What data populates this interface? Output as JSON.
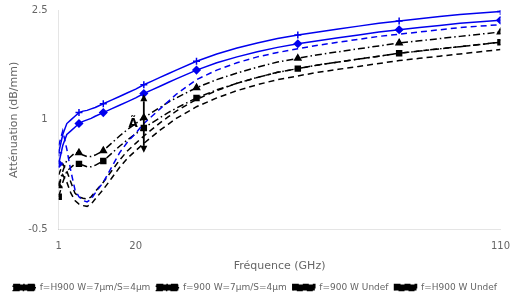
{
  "chart_data": {
    "type": "line",
    "xlabel": "Fréquence (GHz)",
    "ylabel": "Atténuation (dB/mm)",
    "xlim": [
      1,
      110
    ],
    "xticks": [
      1,
      20,
      110
    ],
    "ylim": [
      -0.5,
      2.5
    ],
    "yticks": [
      -0.5,
      1,
      2.5
    ],
    "grid": false,
    "legend": "lower right",
    "x": [
      1,
      2,
      3,
      4,
      5,
      6,
      7,
      8,
      9,
      10,
      12,
      14,
      16,
      18,
      20,
      22,
      24,
      26,
      28,
      30,
      35,
      40,
      45,
      50,
      55,
      60,
      65,
      70,
      75,
      80,
      85,
      90,
      95,
      100,
      105,
      110
    ],
    "series": [
      {
        "color": "#0000ee",
        "marker": "plus",
        "line_style": "solid",
        "values": [
          0.55,
          0.8,
          0.95,
          1.0,
          1.05,
          1.1,
          1.12,
          1.13,
          1.15,
          1.17,
          1.22,
          1.27,
          1.32,
          1.37,
          1.42,
          1.48,
          1.53,
          1.58,
          1.63,
          1.68,
          1.8,
          1.9,
          1.98,
          2.05,
          2.11,
          2.16,
          2.2,
          2.24,
          2.28,
          2.32,
          2.35,
          2.38,
          2.41,
          2.44,
          2.46,
          2.48
        ]
      },
      {
        "color": "#0000ee",
        "marker": "diamond",
        "line_style": "solid",
        "values": [
          0.4,
          0.65,
          0.8,
          0.85,
          0.9,
          0.95,
          0.98,
          1.0,
          1.02,
          1.05,
          1.1,
          1.15,
          1.2,
          1.25,
          1.3,
          1.36,
          1.41,
          1.46,
          1.51,
          1.56,
          1.68,
          1.78,
          1.86,
          1.93,
          1.99,
          2.04,
          2.08,
          2.12,
          2.16,
          2.2,
          2.23,
          2.26,
          2.29,
          2.32,
          2.34,
          2.36
        ]
      },
      {
        "color": "#0000ee",
        "line_style": "dashed",
        "values": [
          0.65,
          0.85,
          0.6,
          0.3,
          0.05,
          -0.05,
          -0.1,
          -0.12,
          -0.08,
          0.0,
          0.15,
          0.35,
          0.55,
          0.7,
          0.82,
          0.95,
          1.05,
          1.15,
          1.25,
          1.35,
          1.55,
          1.68,
          1.78,
          1.86,
          1.92,
          1.97,
          2.02,
          2.06,
          2.1,
          2.14,
          2.17,
          2.2,
          2.23,
          2.26,
          2.28,
          2.3
        ]
      },
      {
        "name": "f=H900 W=7μm/S=4μm",
        "color": "black",
        "marker": "triangle",
        "line_style": "dashdot",
        "values": [
          0.1,
          0.3,
          0.45,
          0.5,
          0.55,
          0.55,
          0.52,
          0.5,
          0.5,
          0.52,
          0.58,
          0.68,
          0.78,
          0.87,
          0.95,
          1.03,
          1.1,
          1.17,
          1.24,
          1.3,
          1.44,
          1.55,
          1.64,
          1.72,
          1.79,
          1.84,
          1.89,
          1.93,
          1.97,
          2.01,
          2.05,
          2.08,
          2.11,
          2.14,
          2.17,
          2.2
        ]
      },
      {
        "name": "f=900 W=7μm/S=4μm",
        "color": "black",
        "marker": "square",
        "line_style": "dashdot",
        "values": [
          -0.05,
          0.15,
          0.3,
          0.35,
          0.4,
          0.4,
          0.38,
          0.36,
          0.36,
          0.38,
          0.44,
          0.54,
          0.64,
          0.73,
          0.81,
          0.89,
          0.96,
          1.03,
          1.1,
          1.16,
          1.3,
          1.41,
          1.5,
          1.58,
          1.65,
          1.7,
          1.75,
          1.79,
          1.83,
          1.87,
          1.91,
          1.94,
          1.97,
          2.0,
          2.03,
          2.06
        ]
      },
      {
        "name": "f=900 W Undef",
        "color": "black",
        "line_style": "dashed",
        "values": [
          0.25,
          0.4,
          0.3,
          0.15,
          0.0,
          -0.05,
          -0.07,
          -0.08,
          -0.05,
          0.02,
          0.15,
          0.3,
          0.45,
          0.58,
          0.68,
          0.78,
          0.87,
          0.96,
          1.04,
          1.12,
          1.28,
          1.4,
          1.5,
          1.58,
          1.65,
          1.7,
          1.75,
          1.79,
          1.83,
          1.87,
          1.91,
          1.94,
          1.97,
          2.0,
          2.03,
          2.06
        ]
      },
      {
        "name": "f=H900 W Undef",
        "color": "black",
        "line_style": "dashed",
        "values": [
          0.1,
          0.25,
          0.15,
          0.0,
          -0.1,
          -0.15,
          -0.17,
          -0.18,
          -0.15,
          -0.08,
          0.05,
          0.2,
          0.35,
          0.48,
          0.58,
          0.68,
          0.77,
          0.86,
          0.94,
          1.02,
          1.18,
          1.3,
          1.4,
          1.48,
          1.55,
          1.6,
          1.65,
          1.69,
          1.73,
          1.77,
          1.81,
          1.84,
          1.87,
          1.9,
          1.93,
          1.96
        ]
      }
    ],
    "annotations": [
      {
        "text": "Ã",
        "x": 22,
        "y_start": 0.55,
        "y_end": 1.35
      }
    ]
  }
}
